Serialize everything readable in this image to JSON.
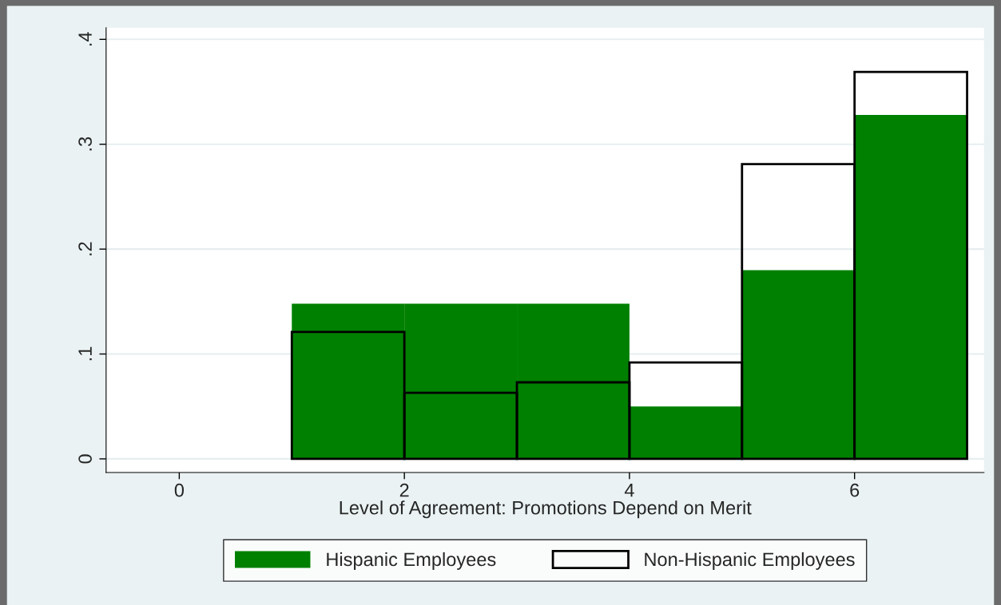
{
  "chart_data": {
    "type": "histogram",
    "xlabel": "Level of Agreement: Promotions Depend on Merit",
    "bins": [
      1,
      2,
      3,
      4,
      5,
      6,
      7
    ],
    "series": [
      {
        "name": "Hispanic Employees",
        "color": "#008000",
        "values": [
          0.148,
          0.148,
          0.148,
          0.05,
          0.18,
          0.328
        ]
      },
      {
        "name": "Non-Hispanic Employees",
        "color": "#000000",
        "values": [
          0.121,
          0.063,
          0.073,
          0.092,
          0.281,
          0.369
        ]
      }
    ],
    "xlim": [
      -0.65,
      7.15
    ],
    "xticks": [
      0,
      2,
      4,
      6
    ],
    "ylim": [
      -0.013,
      0.411
    ],
    "yticks": [
      {
        "value": 0,
        "label": "0"
      },
      {
        "value": 0.1,
        "label": ".1"
      },
      {
        "value": 0.2,
        "label": ".2"
      },
      {
        "value": 0.3,
        "label": ".3"
      },
      {
        "value": 0.4,
        "label": ".4"
      }
    ],
    "grid": "y",
    "legend": "bottom"
  }
}
